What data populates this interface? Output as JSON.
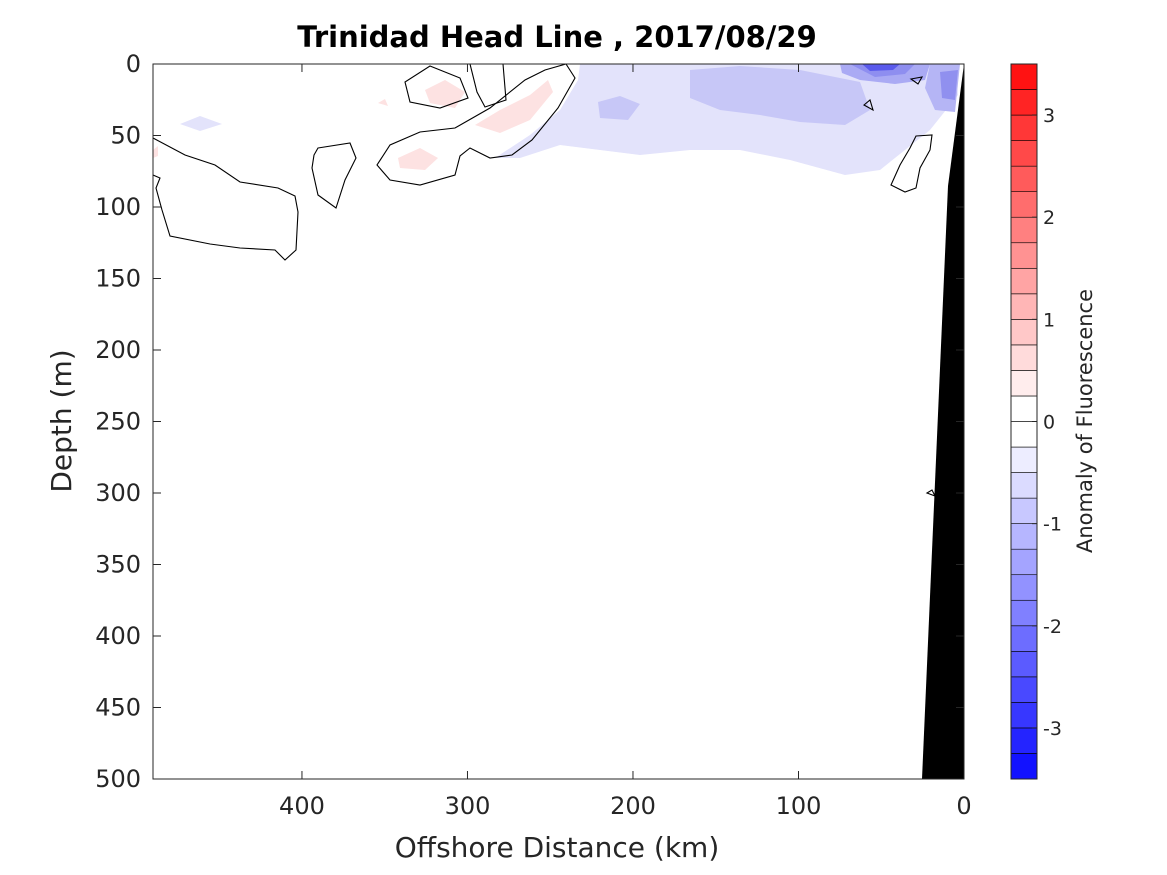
{
  "chart_data": {
    "type": "contour",
    "title": "Trinidad Head Line , 2017/08/29",
    "xlabel": "Offshore Distance (km)",
    "ylabel": "Depth (m)",
    "xlim": [
      490,
      0
    ],
    "ylim": [
      0,
      500
    ],
    "x_ticks": [
      "400",
      "300",
      "200",
      "100",
      "0"
    ],
    "y_ticks": [
      "0",
      "50",
      "100",
      "150",
      "200",
      "250",
      "300",
      "350",
      "400",
      "450",
      "500"
    ],
    "colorbar": {
      "label": "Anomaly of Fluorescence",
      "range": [
        -3.5,
        3.5
      ],
      "step": 0.25,
      "ticks": [
        "3",
        "2",
        "1",
        "0",
        "-1",
        "-2",
        "-3"
      ],
      "tick_values": [
        3,
        2,
        1,
        0,
        -1,
        -2,
        -3
      ],
      "low_color": "#0000ff",
      "mid_color": "#ffffff",
      "high_color": "#ff0000"
    },
    "anomaly_regions": [
      {
        "x": 320,
        "y": 15,
        "value": 0.25
      },
      {
        "x": 330,
        "y": 65,
        "value": 0.25
      },
      {
        "x": 280,
        "y": 40,
        "value": 0.25
      },
      {
        "x": 460,
        "y": 40,
        "value": -0.25
      },
      {
        "x": 200,
        "y": 30,
        "value": -0.25
      },
      {
        "x": 110,
        "y": 20,
        "value": -0.5
      },
      {
        "x": 45,
        "y": 5,
        "value": -1.5
      },
      {
        "x": 10,
        "y": 20,
        "value": -1.0
      }
    ],
    "bathymetry": [
      [
        27,
        500
      ],
      [
        0,
        0
      ],
      [
        10,
        85
      ]
    ]
  }
}
